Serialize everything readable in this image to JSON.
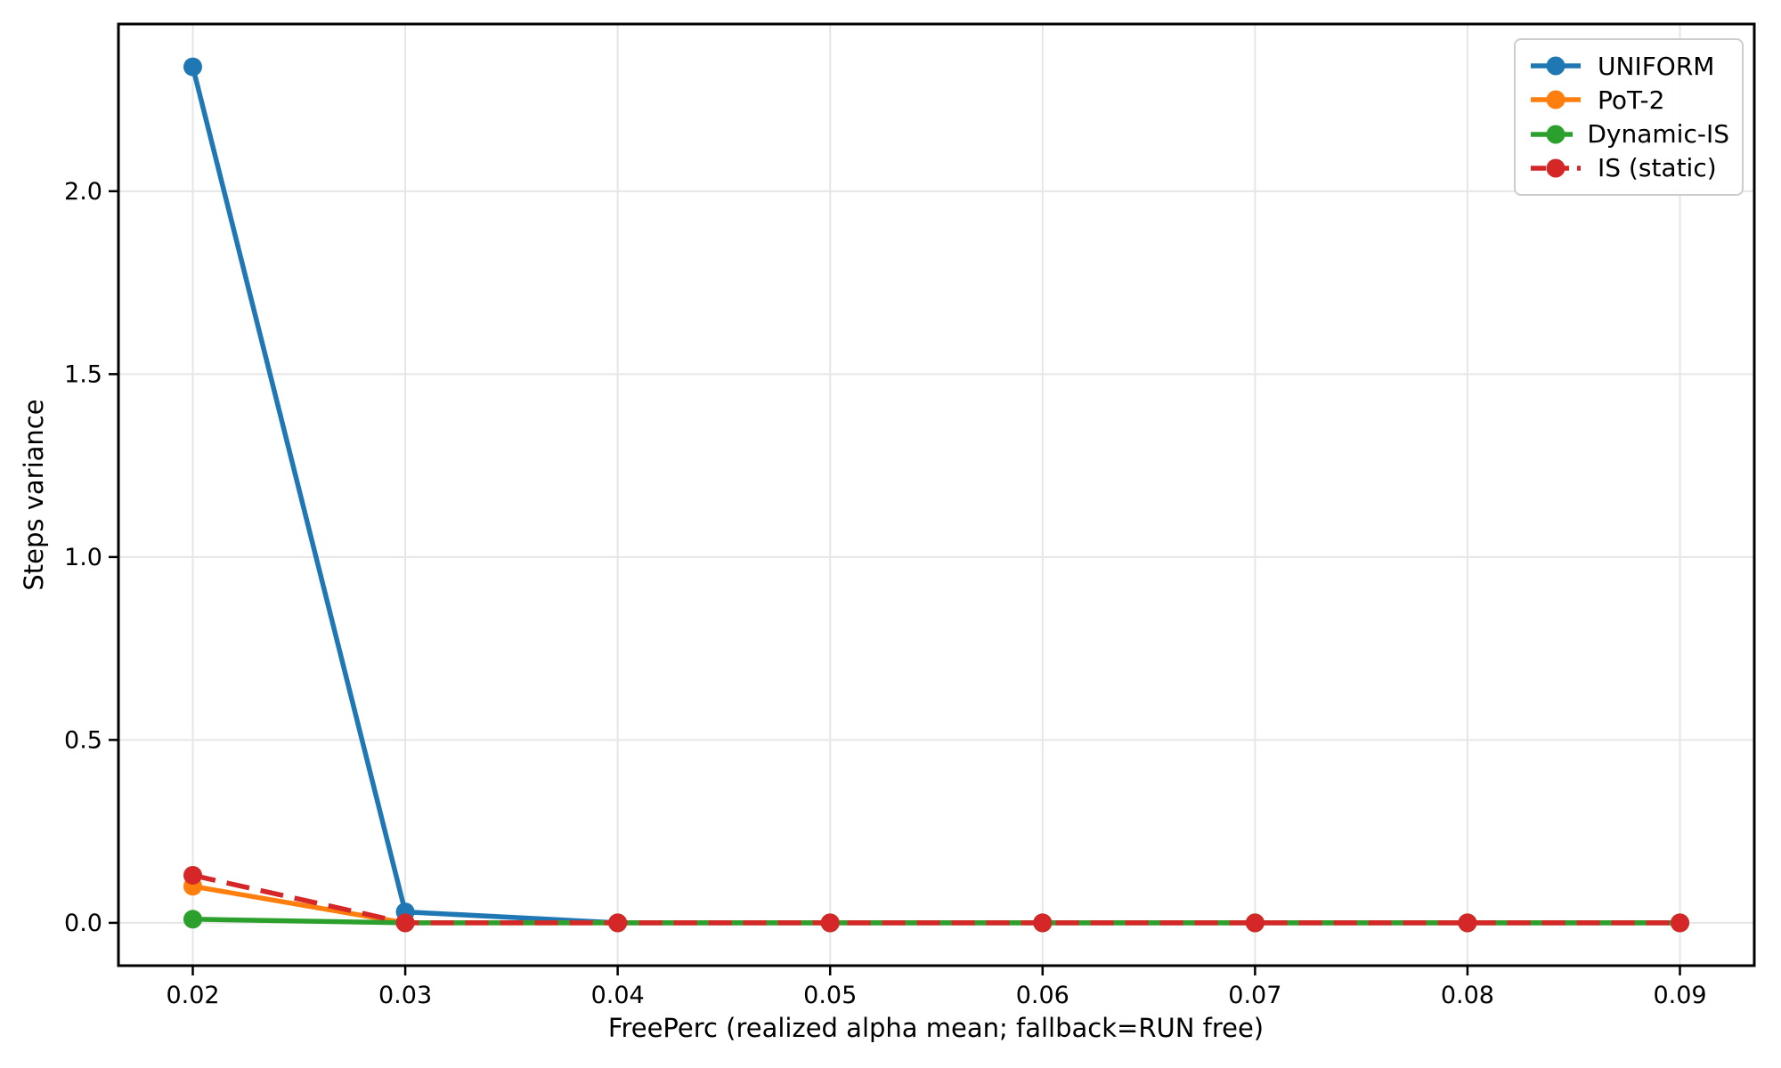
{
  "chart_data": {
    "type": "line",
    "title": "",
    "xlabel": "FreePerc (realized alpha mean; fallback=RUN free)",
    "ylabel": "Steps variance",
    "x": [
      0.02,
      0.03,
      0.04,
      0.05,
      0.06,
      0.07,
      0.08,
      0.09
    ],
    "xtick_labels": [
      "0.02",
      "0.03",
      "0.04",
      "0.05",
      "0.06",
      "0.07",
      "0.08",
      "0.09"
    ],
    "ytick_values": [
      0.0,
      0.5,
      1.0,
      1.5,
      2.0
    ],
    "ytick_labels": [
      "0.0",
      "0.5",
      "1.0",
      "1.5",
      "2.0"
    ],
    "xlim": [
      0.0165,
      0.0935
    ],
    "ylim": [
      -0.117,
      2.457
    ],
    "grid": true,
    "legend_position": "upper right",
    "series": [
      {
        "name": "UNIFORM",
        "color": "#1f77b4",
        "dash": "solid",
        "marker": "circle",
        "values": [
          2.34,
          0.03,
          0.0,
          0.0,
          0.0,
          0.0,
          0.0,
          0.0
        ]
      },
      {
        "name": "PoT-2",
        "color": "#ff7f0e",
        "dash": "solid",
        "marker": "circle",
        "values": [
          0.1,
          0.0,
          0.0,
          0.0,
          0.0,
          0.0,
          0.0,
          0.0
        ]
      },
      {
        "name": "Dynamic-IS",
        "color": "#2ca02c",
        "dash": "solid",
        "marker": "circle",
        "values": [
          0.01,
          0.0,
          0.0,
          0.0,
          0.0,
          0.0,
          0.0,
          0.0
        ]
      },
      {
        "name": "IS (static)",
        "color": "#d62728",
        "dash": "dashed",
        "marker": "circle",
        "values": [
          0.13,
          0.0,
          0.0,
          0.0,
          0.0,
          0.0,
          0.0,
          0.0
        ]
      }
    ]
  }
}
